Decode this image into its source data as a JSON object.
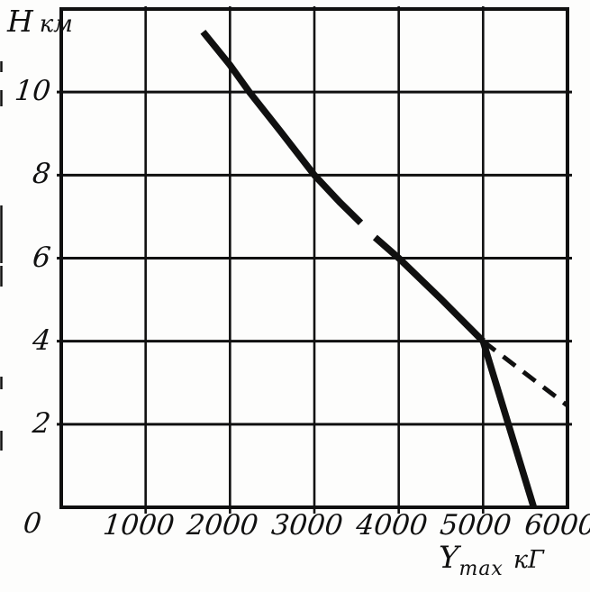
{
  "figure": {
    "background": "#fdfdfc",
    "ink": "#101010"
  },
  "chart_data": {
    "type": "line",
    "title": "",
    "ylabel": {
      "symbol": "Н",
      "unit": "км"
    },
    "xlabel": {
      "base": "Y",
      "subscript": "max",
      "unit": "кГ"
    },
    "xlim": [
      0,
      6000
    ],
    "ylim": [
      0,
      12
    ],
    "grid": "on",
    "legend": "none",
    "x_gridline_step": 1000,
    "y_gridline_step": 2,
    "x_tick_values": [
      1000,
      2000,
      3000,
      4000,
      5000,
      6000
    ],
    "x_tick_labels": [
      "1000",
      "2000",
      "3000",
      "4000",
      "5000",
      "6000"
    ],
    "y_tick_values": [
      10,
      8,
      6,
      4,
      2
    ],
    "y_tick_labels": [
      "10",
      "8",
      "6",
      "4",
      "2"
    ],
    "origin_label": "0",
    "series": [
      {
        "name": "main-curve-upper",
        "style": "solid",
        "points": [
          [
            1680,
            11.45
          ],
          [
            2000,
            10.65
          ],
          [
            2230,
            10
          ],
          [
            2600,
            9.05
          ],
          [
            3000,
            8
          ],
          [
            3300,
            7.35
          ],
          [
            3550,
            6.85
          ]
        ]
      },
      {
        "name": "main-curve-lower",
        "style": "solid",
        "points": [
          [
            3720,
            6.5
          ],
          [
            4000,
            6
          ],
          [
            4500,
            5.02
          ],
          [
            5000,
            4
          ]
        ]
      },
      {
        "name": "steep-descent-branch",
        "style": "solid",
        "points": [
          [
            5000,
            4
          ],
          [
            5600,
            0
          ]
        ]
      },
      {
        "name": "extrapolation-branch",
        "style": "dashed",
        "points": [
          [
            5000,
            4
          ],
          [
            6000,
            2.45
          ]
        ]
      }
    ]
  }
}
